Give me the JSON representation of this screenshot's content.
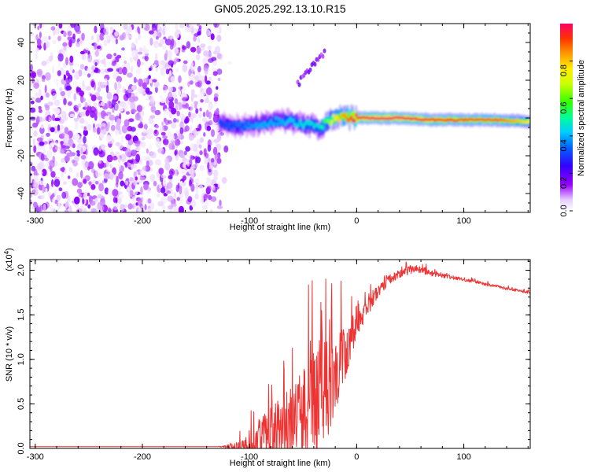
{
  "figure": {
    "title": "GN05.2025.292.13.10.R15"
  },
  "chart_data": [
    {
      "type": "heatmap",
      "title": "GN05.2025.292.13.10.R15",
      "xlabel": "Height of straight line (km)",
      "ylabel": "Frequency (Hz)",
      "xlim": [
        -305,
        162
      ],
      "ylim": [
        -50,
        50
      ],
      "xticks": [
        -300,
        -200,
        -100,
        0,
        100
      ],
      "xtick_labels": [
        "-300",
        "-200",
        "-100",
        "0",
        "100"
      ],
      "yticks": [
        -40,
        -20,
        0,
        20,
        40
      ],
      "ytick_labels": [
        "-40",
        "-20",
        "0",
        "20",
        "40"
      ],
      "colorbar": {
        "label": "Normalized spectral amplitude",
        "range": [
          0,
          1
        ],
        "ticks": [
          0.0,
          0.2,
          0.4,
          0.6,
          0.8
        ],
        "tick_labels": [
          "0.0",
          "0.2",
          "0.4",
          "0.6",
          "0.8"
        ]
      },
      "features": {
        "noise_region_x": [
          -305,
          -128
        ],
        "signal_ridge": {
          "x": [
            -128,
            -110,
            -90,
            -70,
            -50,
            -35,
            -20,
            -5,
            10,
            40,
            70,
            100,
            130,
            162
          ],
          "freq": [
            -3,
            -4,
            -3,
            -1,
            -3,
            -5,
            0,
            0,
            0,
            0,
            -1,
            -1,
            -1,
            -2
          ],
          "amplitude": [
            0.25,
            0.3,
            0.35,
            0.35,
            0.4,
            0.4,
            0.7,
            0.85,
            0.95,
            0.95,
            0.9,
            0.85,
            0.85,
            0.7
          ]
        },
        "streaks": [
          {
            "x_start": -55,
            "x_end": -30,
            "freq_start": 18,
            "freq_end": 35
          }
        ]
      }
    },
    {
      "type": "line",
      "xlabel": "Height of straight line (km)",
      "ylabel": "SNR (10 * v/v)",
      "yscale_label": "(x10",
      "yscale_exponent": "4",
      "xlim": [
        -305,
        162
      ],
      "ylim": [
        0,
        2.12
      ],
      "xticks": [
        -300,
        -200,
        -100,
        0,
        100
      ],
      "xtick_labels": [
        "-300",
        "-200",
        "-100",
        "0",
        "100"
      ],
      "yticks": [
        0.0,
        0.5,
        1.0,
        1.5,
        2.0
      ],
      "ytick_labels": [
        "0.0",
        "0.5",
        "1.0",
        "1.5",
        "2.0"
      ],
      "series": [
        {
          "name": "SNR",
          "color": "#ee3333",
          "x": [
            -305,
            -200,
            -130,
            -115,
            -105,
            -100,
            -90,
            -80,
            -70,
            -60,
            -50,
            -40,
            -30,
            -20,
            -15,
            -10,
            -5,
            0,
            10,
            20,
            30,
            40,
            50,
            55,
            60,
            70,
            80,
            90,
            100,
            110,
            120,
            130,
            140,
            150,
            162
          ],
          "y": [
            0.02,
            0.02,
            0.02,
            0.03,
            0.06,
            0.12,
            0.2,
            0.28,
            0.34,
            0.4,
            0.52,
            0.7,
            0.82,
            1.0,
            1.1,
            1.18,
            1.3,
            1.5,
            1.65,
            1.8,
            1.92,
            1.98,
            2.02,
            2.04,
            2.02,
            1.98,
            1.95,
            1.93,
            1.9,
            1.88,
            1.85,
            1.83,
            1.8,
            1.78,
            1.75
          ],
          "spread": [
            0,
            0,
            0,
            0.04,
            0.12,
            0.2,
            0.3,
            0.4,
            0.5,
            0.6,
            0.8,
            0.9,
            0.8,
            0.6,
            0.5,
            0.4,
            0.35,
            0.25,
            0.15,
            0.1,
            0.07,
            0.06,
            0.06,
            0.05,
            0.05,
            0.04,
            0.03,
            0.03,
            0.02,
            0.02,
            0.02,
            0.02,
            0.02,
            0.02,
            0.02
          ]
        }
      ]
    }
  ]
}
